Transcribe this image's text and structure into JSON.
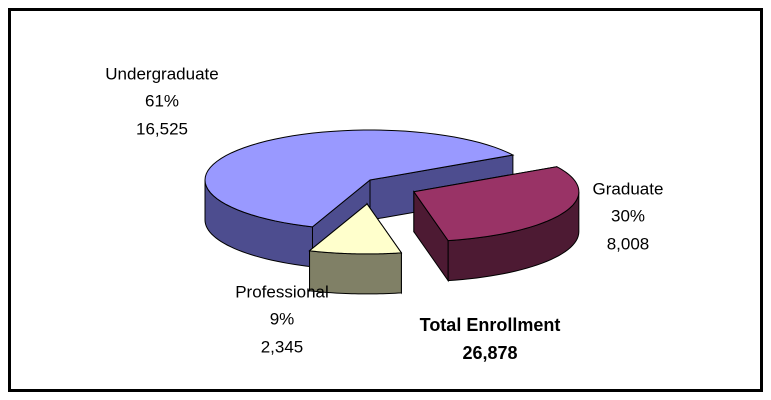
{
  "chart_data": {
    "type": "pie3d",
    "categories": [
      "Undergraduate",
      "Graduate",
      "Professional"
    ],
    "values": [
      61,
      30,
      9
    ],
    "value_labels": [
      "61%",
      "30%",
      "9%"
    ],
    "counts": [
      16525,
      8008,
      2345
    ],
    "count_labels": [
      "16,525",
      "8,008",
      "2,345"
    ],
    "colors": [
      "#9999ff",
      "#993366",
      "#ffffcc"
    ],
    "side_colors": [
      "#4d4d8f",
      "#4d1a33",
      "#808066"
    ],
    "total_title": "Total Enrollment",
    "total": {
      "value": 26878,
      "label": "26,878"
    }
  }
}
